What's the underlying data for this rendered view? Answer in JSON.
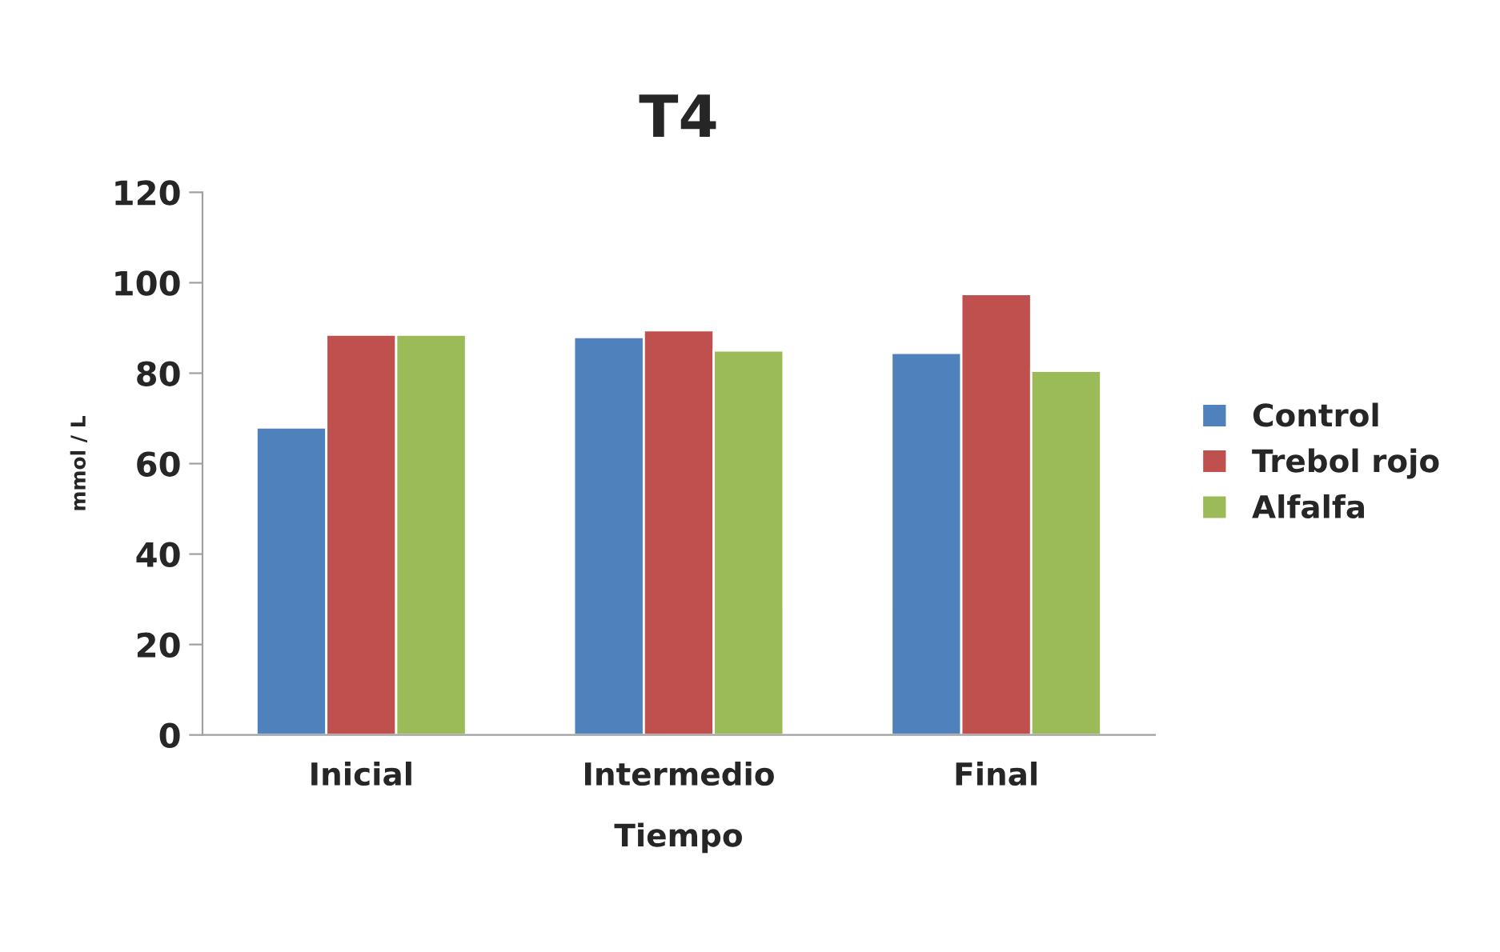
{
  "chart_data": {
    "type": "bar",
    "title": "T4",
    "xlabel": "Tiempo",
    "ylabel": "mmol / L",
    "categories": [
      "Inicial",
      "Intermedio",
      "Final"
    ],
    "series": [
      {
        "name": "Control",
        "color": "#4f81bd",
        "values": [
          68,
          88,
          84.5
        ]
      },
      {
        "name": "Trebol rojo",
        "color": "#c0504d",
        "values": [
          88.5,
          89.5,
          97.5
        ]
      },
      {
        "name": "Alfalfa",
        "color": "#9bbb59",
        "values": [
          88.5,
          85,
          80.5
        ]
      }
    ],
    "ylim": [
      0,
      120
    ],
    "yticks": [
      0,
      20,
      40,
      60,
      80,
      100,
      120
    ],
    "grid": false,
    "legend": "right"
  }
}
